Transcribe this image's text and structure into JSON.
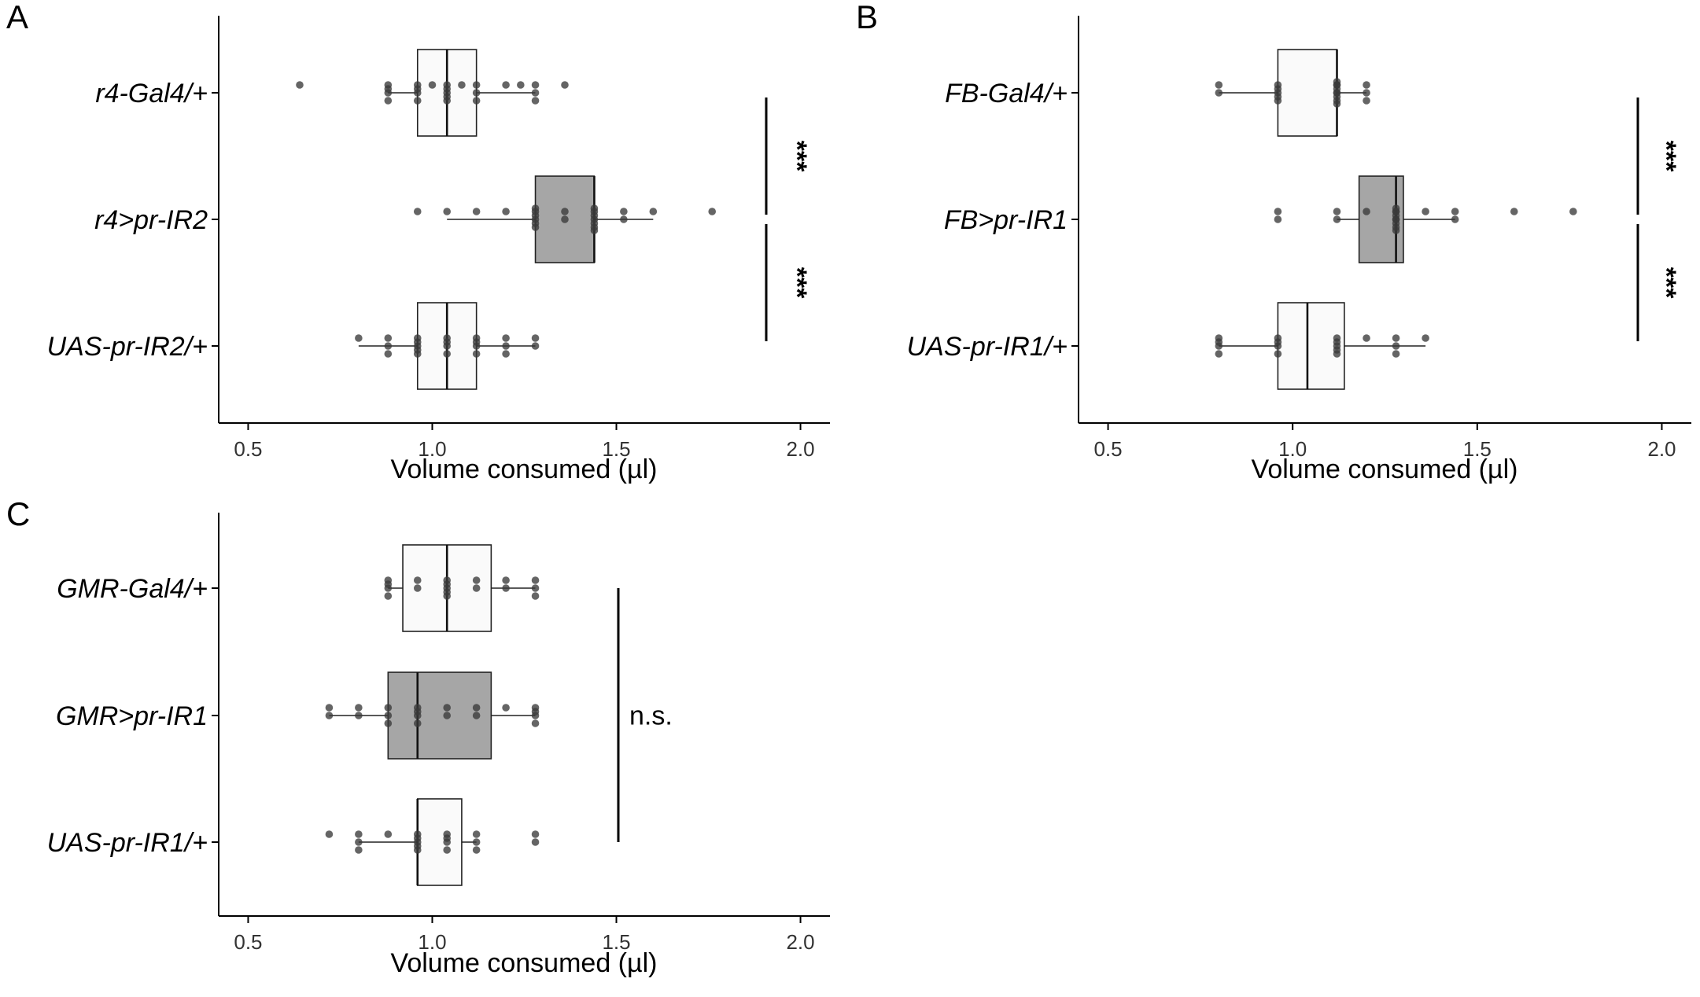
{
  "colors": {
    "box_control": "#fafafa",
    "box_experimental": "#a6a6a6",
    "point": "#3a3a3a",
    "axis": "#000000"
  },
  "chart_data": [
    {
      "panel": "A",
      "type": "box",
      "orientation": "horizontal",
      "xlabel": "Volume consumed (µl)",
      "xlim": [
        0.42,
        2.08
      ],
      "xticks": [
        "0.5",
        "1.0",
        "1.5",
        "2.0"
      ],
      "categories": [
        "r4-Gal4/+",
        "r4>pr-IR2",
        "UAS-pr-IR2/+"
      ],
      "groups": [
        {
          "label": "r4-Gal4/+",
          "fill": "control",
          "q1": 0.96,
          "median": 1.04,
          "q3": 1.12,
          "whisker_low": 0.88,
          "whisker_high": 1.28,
          "points": [
            0.64,
            0.88,
            0.88,
            0.88,
            0.88,
            0.96,
            0.96,
            0.96,
            0.96,
            1.0,
            1.04,
            1.04,
            1.04,
            1.04,
            1.04,
            1.08,
            1.12,
            1.12,
            1.12,
            1.2,
            1.24,
            1.28,
            1.28,
            1.28,
            1.36
          ]
        },
        {
          "label": "r4>pr-IR2",
          "fill": "experimental",
          "q1": 1.28,
          "median": 1.44,
          "q3": 1.44,
          "whisker_low": 1.04,
          "whisker_high": 1.6,
          "points": [
            0.96,
            1.04,
            1.12,
            1.2,
            1.28,
            1.28,
            1.28,
            1.28,
            1.28,
            1.28,
            1.36,
            1.36,
            1.44,
            1.44,
            1.44,
            1.44,
            1.44,
            1.44,
            1.44,
            1.52,
            1.52,
            1.6,
            1.76
          ]
        },
        {
          "label": "UAS-pr-IR2/+",
          "fill": "control",
          "q1": 0.96,
          "median": 1.04,
          "q3": 1.12,
          "whisker_low": 0.8,
          "whisker_high": 1.28,
          "points": [
            0.8,
            0.88,
            0.88,
            0.88,
            0.96,
            0.96,
            0.96,
            0.96,
            0.96,
            1.04,
            1.04,
            1.04,
            1.04,
            1.12,
            1.12,
            1.12,
            1.12,
            1.2,
            1.2,
            1.2,
            1.28,
            1.28
          ]
        }
      ],
      "comparisons": [
        {
          "between": [
            "r4-Gal4/+",
            "r4>pr-IR2"
          ],
          "label": "***"
        },
        {
          "between": [
            "r4>pr-IR2",
            "UAS-pr-IR2/+"
          ],
          "label": "***"
        }
      ]
    },
    {
      "panel": "B",
      "type": "box",
      "orientation": "horizontal",
      "xlabel": "Volume consumed (µl)",
      "xlim": [
        0.42,
        2.08
      ],
      "xticks": [
        "0.5",
        "1.0",
        "1.5",
        "2.0"
      ],
      "categories": [
        "FB-Gal4/+",
        "FB>pr-IR1",
        "UAS-pr-IR1/+"
      ],
      "groups": [
        {
          "label": "FB-Gal4/+",
          "fill": "control",
          "q1": 0.96,
          "median": 1.12,
          "q3": 1.12,
          "whisker_low": 0.8,
          "whisker_high": 1.2,
          "points": [
            0.8,
            0.8,
            0.96,
            0.96,
            0.96,
            0.96,
            0.96,
            1.12,
            1.12,
            1.12,
            1.12,
            1.12,
            1.12,
            1.12,
            1.12,
            1.12,
            1.2,
            1.2,
            1.2
          ]
        },
        {
          "label": "FB>pr-IR1",
          "fill": "experimental",
          "q1": 1.18,
          "median": 1.28,
          "q3": 1.3,
          "whisker_low": 1.12,
          "whisker_high": 1.44,
          "points": [
            0.96,
            0.96,
            1.12,
            1.12,
            1.2,
            1.28,
            1.28,
            1.28,
            1.28,
            1.28,
            1.28,
            1.28,
            1.28,
            1.28,
            1.36,
            1.44,
            1.44,
            1.6,
            1.76
          ]
        },
        {
          "label": "UAS-pr-IR1/+",
          "fill": "control",
          "q1": 0.96,
          "median": 1.04,
          "q3": 1.14,
          "whisker_low": 0.8,
          "whisker_high": 1.36,
          "points": [
            0.8,
            0.8,
            0.8,
            0.8,
            0.96,
            0.96,
            0.96,
            0.96,
            1.12,
            1.12,
            1.12,
            1.12,
            1.12,
            1.2,
            1.28,
            1.28,
            1.28,
            1.36
          ]
        }
      ],
      "comparisons": [
        {
          "between": [
            "FB-Gal4/+",
            "FB>pr-IR1"
          ],
          "label": "***"
        },
        {
          "between": [
            "FB>pr-IR1",
            "UAS-pr-IR1/+"
          ],
          "label": "***"
        }
      ]
    },
    {
      "panel": "C",
      "type": "box",
      "orientation": "horizontal",
      "xlabel": "Volume consumed (µl)",
      "xlim": [
        0.42,
        2.08
      ],
      "xticks": [
        "0.5",
        "1.0",
        "1.5",
        "2.0"
      ],
      "categories": [
        "GMR-Gal4/+",
        "GMR>pr-IR1",
        "UAS-pr-IR1/+"
      ],
      "groups": [
        {
          "label": "GMR-Gal4/+",
          "fill": "control",
          "q1": 0.92,
          "median": 1.04,
          "q3": 1.16,
          "whisker_low": 0.88,
          "whisker_high": 1.28,
          "points": [
            0.88,
            0.88,
            0.88,
            0.88,
            0.96,
            0.96,
            1.04,
            1.04,
            1.04,
            1.04,
            1.04,
            1.12,
            1.12,
            1.2,
            1.2,
            1.28,
            1.28,
            1.28
          ]
        },
        {
          "label": "GMR>pr-IR1",
          "fill": "experimental",
          "q1": 0.88,
          "median": 0.96,
          "q3": 1.16,
          "whisker_low": 0.72,
          "whisker_high": 1.28,
          "points": [
            0.72,
            0.72,
            0.8,
            0.8,
            0.88,
            0.88,
            0.88,
            0.96,
            0.96,
            0.96,
            0.96,
            1.04,
            1.04,
            1.12,
            1.12,
            1.2,
            1.28,
            1.28,
            1.28,
            1.28
          ]
        },
        {
          "label": "UAS-pr-IR1/+",
          "fill": "control",
          "q1": 0.96,
          "median": 0.96,
          "q3": 1.08,
          "whisker_low": 0.8,
          "whisker_high": 1.12,
          "points": [
            0.72,
            0.8,
            0.8,
            0.8,
            0.88,
            0.96,
            0.96,
            0.96,
            0.96,
            0.96,
            1.04,
            1.04,
            1.04,
            1.04,
            1.12,
            1.12,
            1.12,
            1.28,
            1.28
          ]
        }
      ],
      "comparisons": [
        {
          "between": [
            "GMR-Gal4/+",
            "UAS-pr-IR1/+"
          ],
          "label": "n.s."
        }
      ]
    }
  ]
}
